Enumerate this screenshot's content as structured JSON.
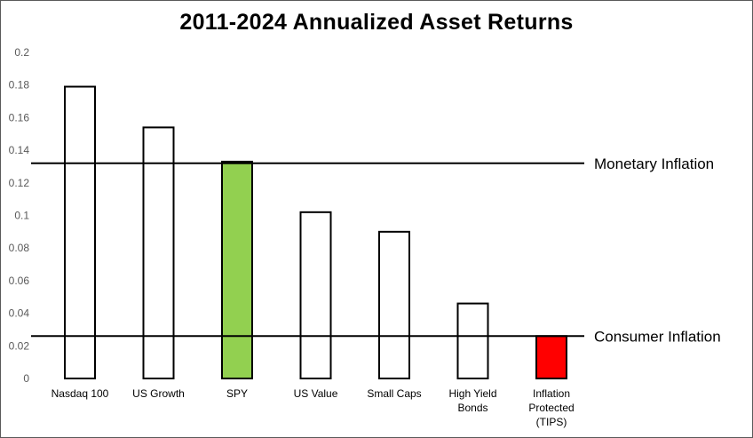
{
  "chart_data": {
    "type": "bar",
    "title": "2011-2024 Annualized Asset Returns",
    "xlabel": "",
    "ylabel": "",
    "ylim": [
      0,
      0.2
    ],
    "yticks": [
      "0",
      "0.02",
      "0.04",
      "0.06",
      "0.08",
      "0.1",
      "0.12",
      "0.14",
      "0.16",
      "0.18",
      "0.2"
    ],
    "grid": false,
    "categories": [
      [
        "Nasdaq 100"
      ],
      [
        "US Growth"
      ],
      [
        "SPY"
      ],
      [
        "US Value"
      ],
      [
        "Small Caps"
      ],
      [
        "High Yield",
        "Bonds"
      ],
      [
        "Inflation",
        "Protected",
        "(TIPS)"
      ]
    ],
    "values": [
      0.179,
      0.154,
      0.133,
      0.102,
      0.09,
      0.046,
      0.026
    ],
    "bar_fills": [
      "#ffffff",
      "#ffffff",
      "#92d050",
      "#ffffff",
      "#ffffff",
      "#ffffff",
      "#ff0000"
    ],
    "reference_lines": [
      {
        "label": "Monetary Inflation",
        "value": 0.132
      },
      {
        "label": "Consumer Inflation",
        "value": 0.026
      }
    ]
  }
}
